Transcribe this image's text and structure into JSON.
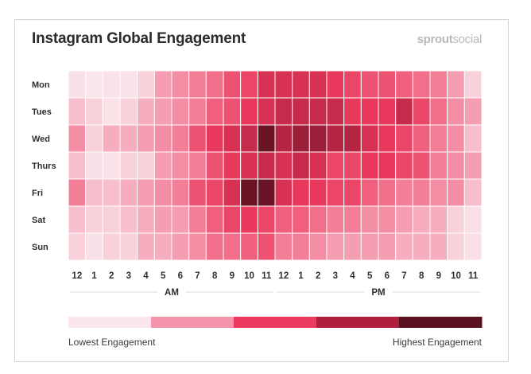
{
  "header": {
    "title": "Instagram Global Engagement",
    "brand_bold": "sprout",
    "brand_light": "social"
  },
  "legend": {
    "low_label": "Lowest Engagement",
    "high_label": "Highest Engagement",
    "colors": [
      "#fae6ec",
      "#f594ab",
      "#ec3a5f",
      "#b01f3f",
      "#5a1220"
    ]
  },
  "chart_data": {
    "type": "heatmap",
    "title": "Instagram Global Engagement",
    "rows": [
      "Mon",
      "Tues",
      "Wed",
      "Thurs",
      "Fri",
      "Sat",
      "Sun"
    ],
    "columns": [
      "12",
      "1",
      "2",
      "3",
      "4",
      "5",
      "6",
      "7",
      "8",
      "9",
      "10",
      "11",
      "12",
      "1",
      "2",
      "3",
      "4",
      "5",
      "6",
      "7",
      "8",
      "9",
      "10",
      "11"
    ],
    "column_groups": [
      {
        "label": "AM",
        "start": 0,
        "end": 11
      },
      {
        "label": "PM",
        "start": 12,
        "end": 23
      }
    ],
    "scale": {
      "min": 0,
      "max": 10,
      "min_label": "Lowest Engagement",
      "max_label": "Highest Engagement"
    },
    "values": [
      [
        1,
        0.5,
        0.8,
        0.8,
        1.5,
        3,
        3.5,
        4,
        4.5,
        5.5,
        6,
        7,
        7,
        7,
        7,
        6.5,
        6,
        5.5,
        5.5,
        5,
        4.5,
        4,
        3,
        1.5
      ],
      [
        2,
        1.5,
        0.8,
        1.5,
        2.5,
        3,
        3.5,
        4,
        5,
        5.5,
        6.5,
        7,
        7.5,
        7.5,
        7.5,
        7.5,
        6.5,
        6.5,
        6.5,
        7.5,
        6,
        4.5,
        3.5,
        3
      ],
      [
        3.5,
        1.5,
        2.5,
        2.5,
        3,
        3.5,
        4,
        5.5,
        6.5,
        7,
        7.5,
        9.5,
        8,
        8.5,
        8.5,
        8,
        8,
        7,
        6.5,
        6,
        5,
        4,
        3.5,
        2
      ],
      [
        2,
        1,
        0.8,
        1.5,
        1.5,
        3,
        3.5,
        4,
        5.5,
        6.5,
        7,
        7.5,
        7,
        7.5,
        7,
        6,
        6,
        6.5,
        6.5,
        6,
        5.5,
        4,
        3.5,
        3
      ],
      [
        4,
        2,
        2,
        2.5,
        3,
        3.5,
        4,
        5.5,
        6,
        7,
        9.5,
        9.5,
        7,
        6.5,
        6.5,
        6,
        6,
        5,
        4.5,
        4,
        4,
        3.5,
        3.5,
        2
      ],
      [
        2,
        1.5,
        1.5,
        2,
        2.5,
        3,
        3,
        4,
        5,
        6,
        6.5,
        6,
        5,
        5,
        4.5,
        4,
        4,
        3.5,
        3.5,
        3,
        2.5,
        2.5,
        1.5,
        1
      ],
      [
        1.5,
        1,
        1.5,
        1.5,
        2.5,
        2.5,
        3,
        3.5,
        4.5,
        4.5,
        5,
        5.5,
        4,
        4,
        3.5,
        3,
        3,
        3,
        3,
        2.5,
        2.5,
        2.5,
        1.5,
        1
      ]
    ]
  }
}
